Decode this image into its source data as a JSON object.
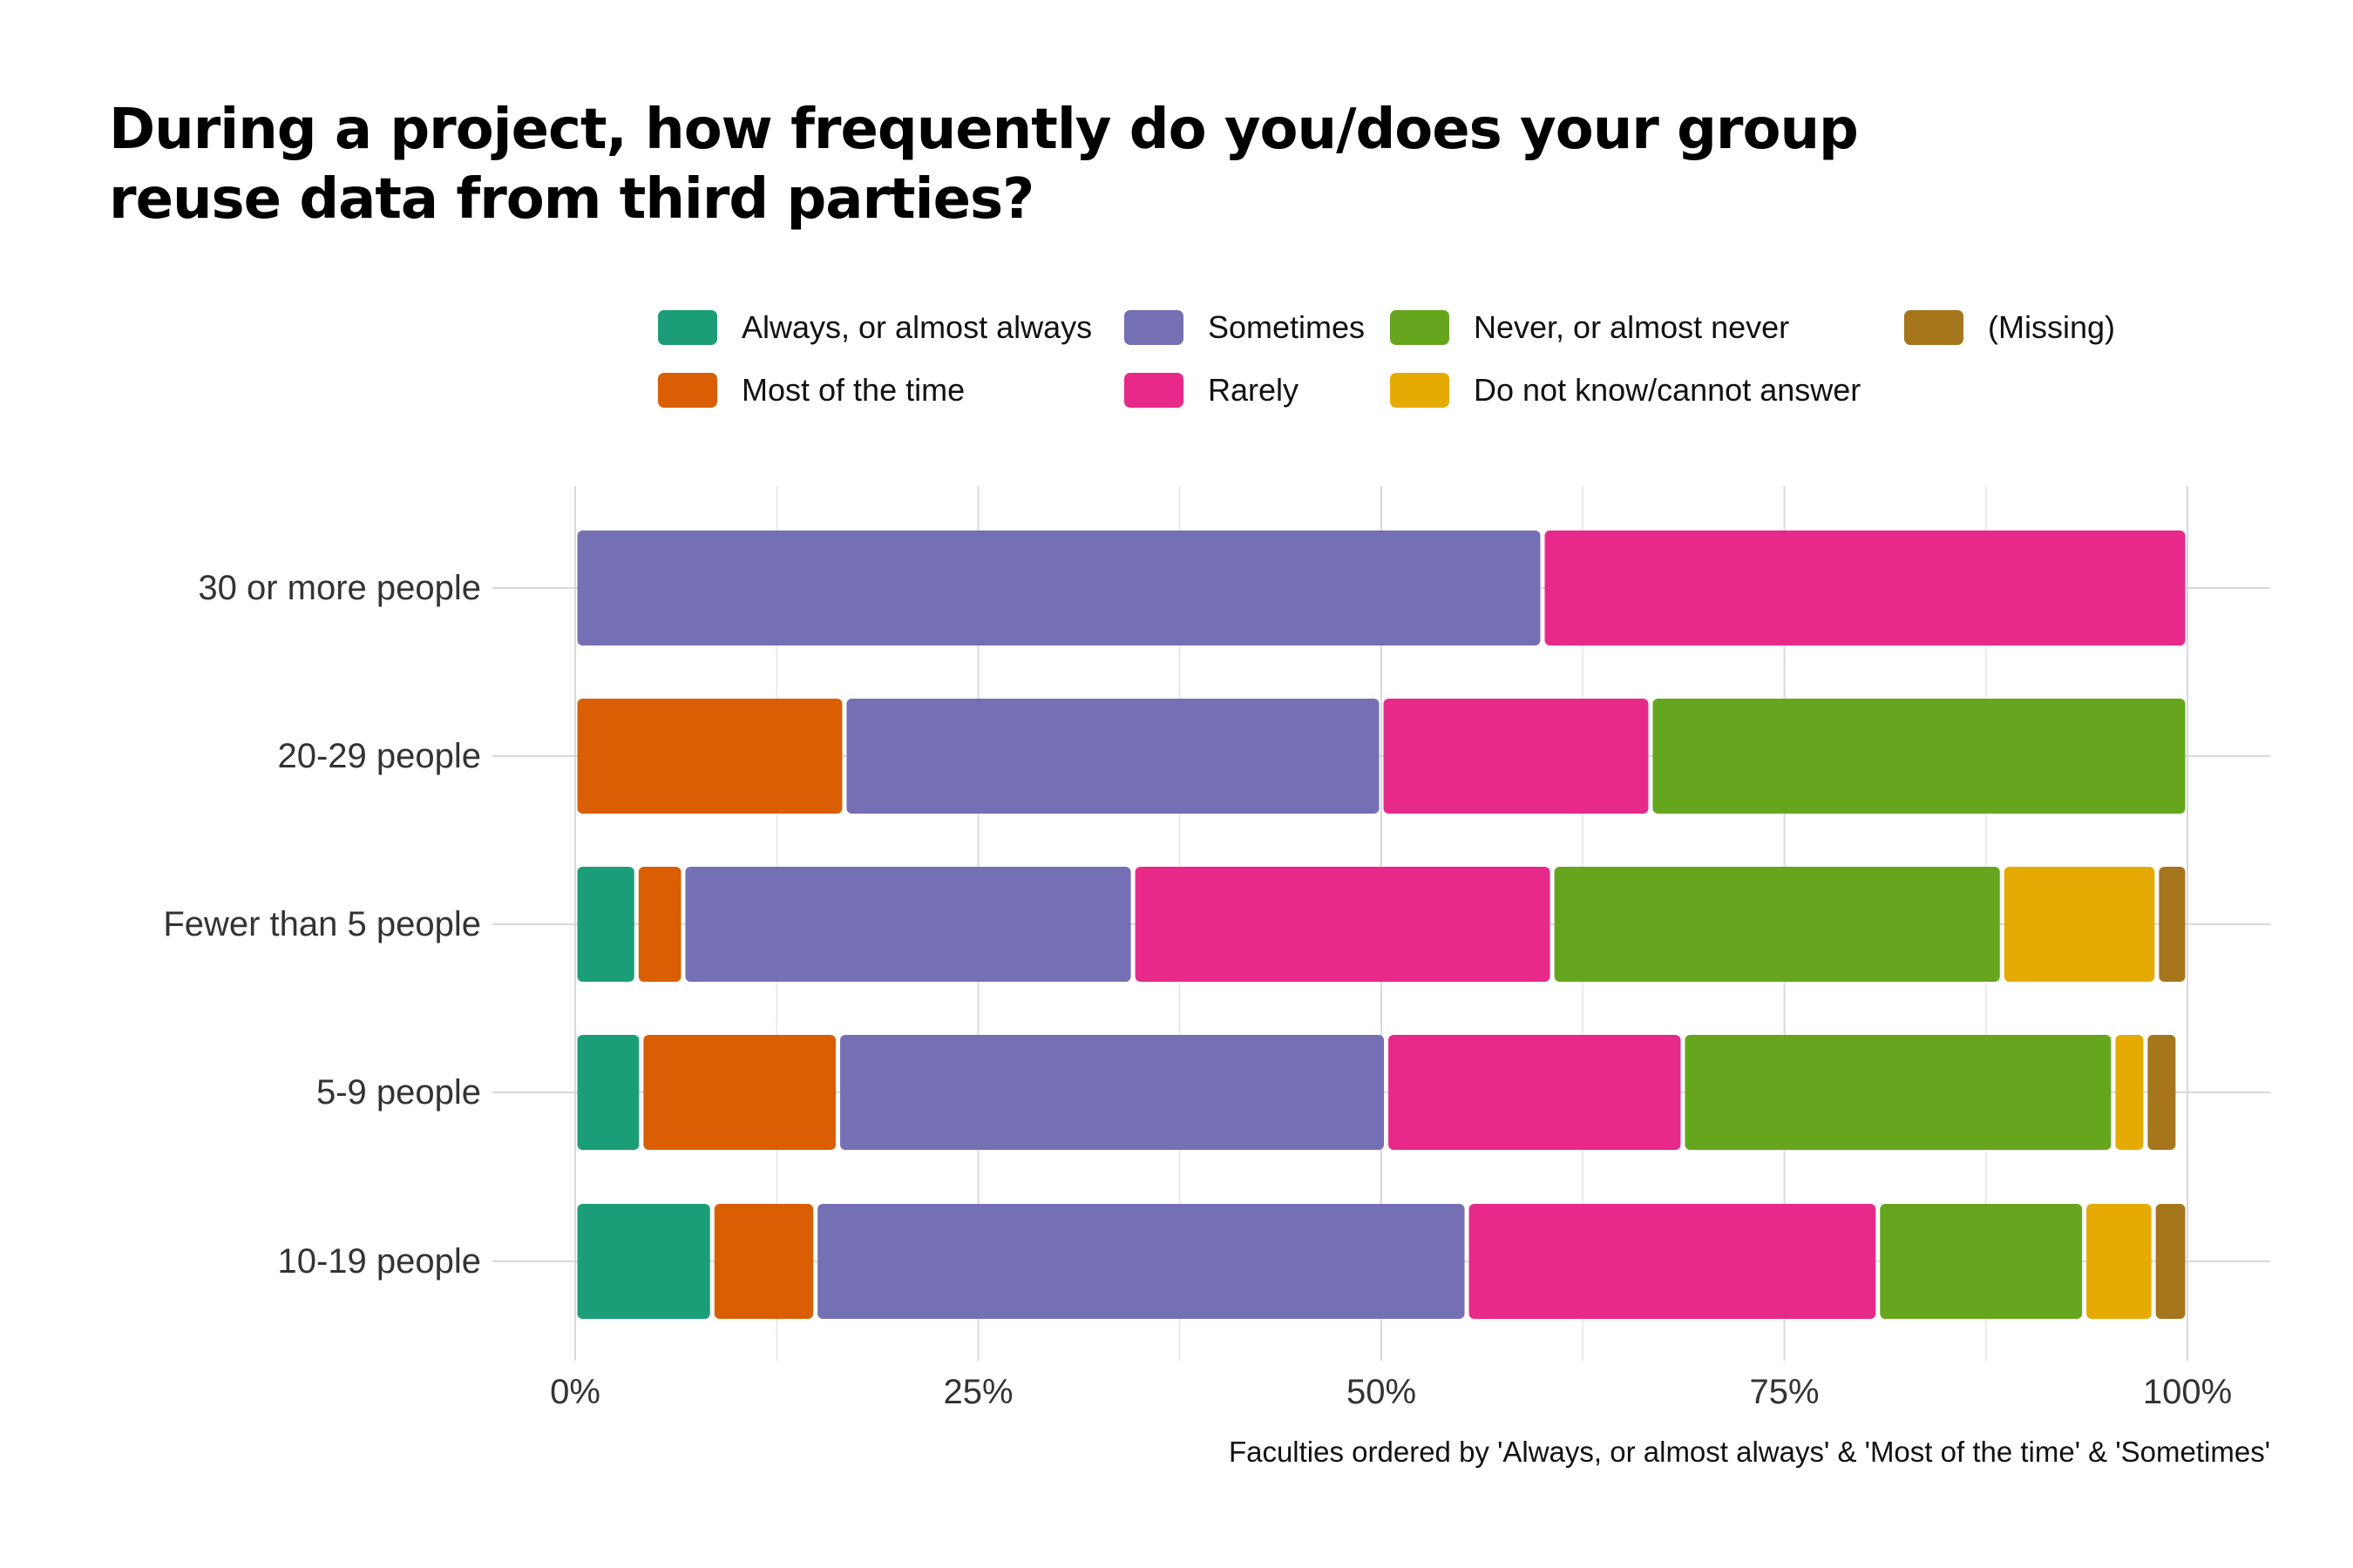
{
  "chart_data": {
    "type": "bar",
    "orientation": "horizontal",
    "stacked": true,
    "title_lines": [
      "During a project, how frequently do you/does your group",
      "reuse data from third parties?"
    ],
    "caption": "Faculties ordered by 'Always, or almost always' & 'Most of the time' & 'Sometimes'",
    "legend_position": "top",
    "categories": [
      "30 or more people",
      "20-29 people",
      "Fewer than 5 people",
      "5-9 people",
      "10-19 people"
    ],
    "xlim": [
      0,
      100
    ],
    "xticks": [
      0,
      25,
      50,
      75,
      100
    ],
    "xtick_labels": [
      "0%",
      "25%",
      "50%",
      "75%",
      "100%"
    ],
    "grid": true,
    "series": [
      {
        "name": "Always, or almost always",
        "color": "#1B9E77",
        "values": [
          0,
          0,
          3.8,
          4.1,
          8.5
        ]
      },
      {
        "name": "Most of the time",
        "color": "#D95F02",
        "values": [
          0,
          16.7,
          2.9,
          12.2,
          6.4
        ]
      },
      {
        "name": "Sometimes",
        "color": "#7570B3",
        "values": [
          60,
          33.3,
          27.9,
          34.0,
          40.4
        ]
      },
      {
        "name": "Rarely",
        "color": "#E7298A",
        "values": [
          40,
          16.7,
          26.0,
          18.4,
          25.5
        ]
      },
      {
        "name": "Never, or almost never",
        "color": "#66A61E",
        "values": [
          0,
          33.3,
          27.9,
          26.7,
          12.8
        ]
      },
      {
        "name": "Do not know/cannot answer",
        "color": "#E6AB02",
        "values": [
          0,
          0,
          9.6,
          2.0,
          4.3
        ]
      },
      {
        "name": "(Missing)",
        "color": "#A6761D",
        "values": [
          0,
          0,
          1.9,
          2.0,
          2.1
        ]
      }
    ]
  }
}
